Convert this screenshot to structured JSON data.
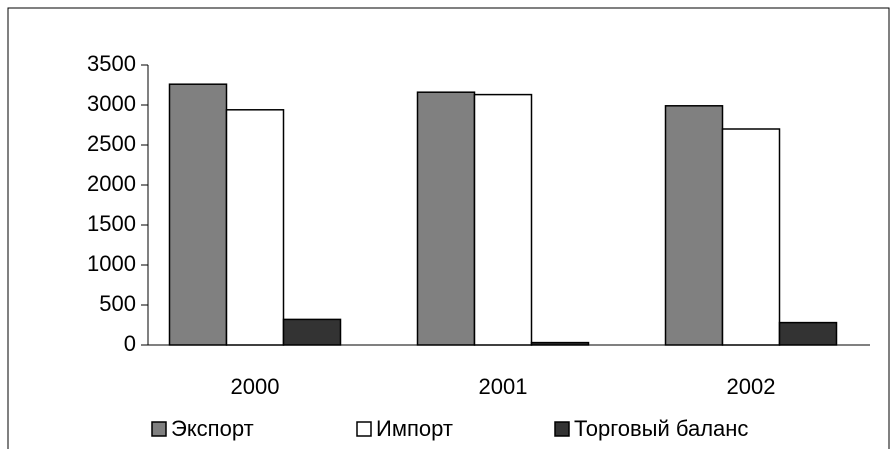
{
  "chart_data": {
    "type": "bar",
    "categories": [
      "2000",
      "2001",
      "2002"
    ],
    "series": [
      {
        "name": "Экспорт",
        "color": "#808080",
        "values": [
          3260,
          3160,
          2990
        ]
      },
      {
        "name": "Импорт",
        "color": "#ffffff",
        "values": [
          2940,
          3130,
          2700
        ]
      },
      {
        "name": "Торговый баланс",
        "color": "#333333",
        "values": [
          320,
          30,
          280
        ]
      }
    ],
    "ylim": [
      0,
      3500
    ],
    "yticks": [
      0,
      500,
      1000,
      1500,
      2000,
      2500,
      3000,
      3500
    ],
    "grid": false,
    "legend": "bottom"
  }
}
